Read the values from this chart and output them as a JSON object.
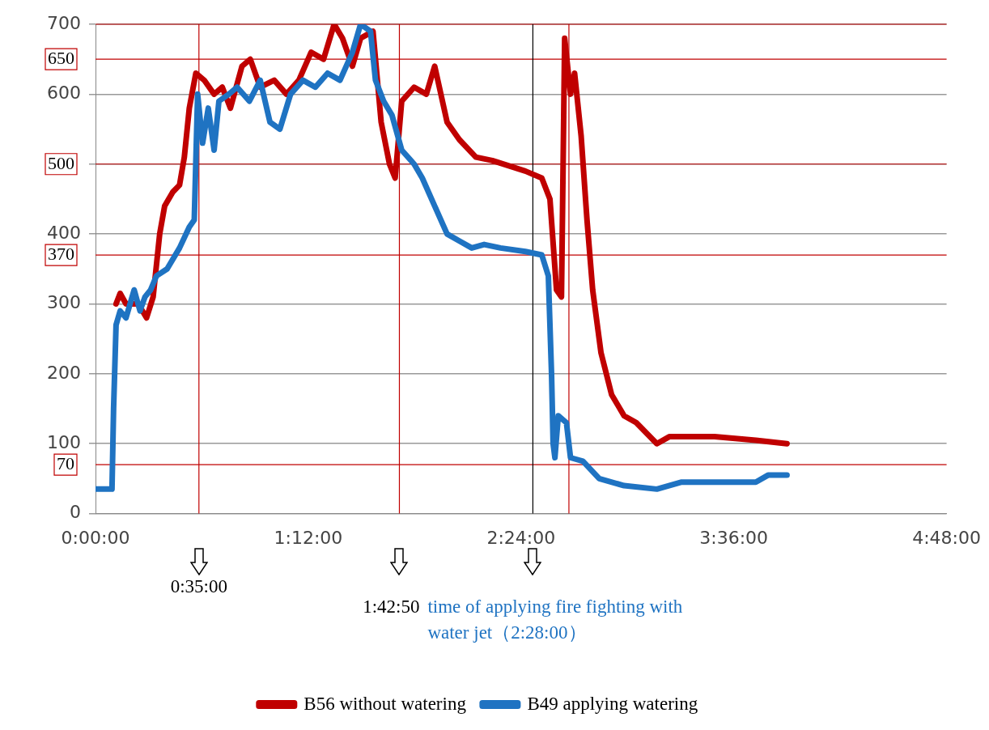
{
  "chart_data": {
    "type": "line",
    "legend": "bottom",
    "grid": "y",
    "marker": "none",
    "line_style": "solid",
    "xlim": [
      0,
      4.8
    ],
    "xticks": [
      {
        "value": 0,
        "label": "0:00:00"
      },
      {
        "value": 1.2,
        "label": "1:12:00"
      },
      {
        "value": 2.4,
        "label": "2:24:00"
      },
      {
        "value": 3.6,
        "label": "3:36:00"
      },
      {
        "value": 4.8,
        "label": "4:48:00"
      }
    ],
    "ylim": [
      0,
      700
    ],
    "yticks": [
      0,
      100,
      200,
      300,
      400,
      {
        "value": 500,
        "label": null
      },
      600,
      700
    ],
    "series": [
      {
        "name": "B56 without watering",
        "color": "#c00000",
        "x": [
          0.116,
          0.139,
          0.172,
          0.241,
          0.288,
          0.325,
          0.362,
          0.39,
          0.436,
          0.474,
          0.501,
          0.529,
          0.566,
          0.613,
          0.669,
          0.715,
          0.761,
          0.826,
          0.873,
          0.929,
          1.008,
          1.077,
          1.147,
          1.216,
          1.286,
          1.346,
          1.393,
          1.449,
          1.495,
          1.565,
          1.611,
          1.658,
          1.69,
          1.727,
          1.797,
          1.866,
          1.913,
          1.983,
          2.052,
          2.145,
          2.238,
          2.424,
          2.517,
          2.563,
          2.6,
          2.628,
          2.646,
          2.679,
          2.702,
          2.739,
          2.772,
          2.804,
          2.851,
          2.911,
          2.981,
          3.05,
          3.166,
          3.236,
          3.491,
          3.724,
          3.9
        ],
        "values": [
          300,
          315,
          300,
          300,
          280,
          310,
          400,
          440,
          460,
          470,
          510,
          580,
          630,
          620,
          600,
          610,
          580,
          640,
          650,
          610,
          620,
          600,
          620,
          660,
          650,
          700,
          680,
          640,
          680,
          690,
          560,
          500,
          480,
          590,
          610,
          600,
          640,
          560,
          535,
          510,
          505,
          490,
          480,
          450,
          320,
          310,
          680,
          600,
          630,
          540,
          420,
          320,
          230,
          170,
          140,
          130,
          100,
          110,
          110,
          105,
          100
        ]
      },
      {
        "name": "B49 applying watering",
        "color": "#1f73c2",
        "x": [
          0,
          0.093,
          0.102,
          0.116,
          0.139,
          0.172,
          0.195,
          0.218,
          0.251,
          0.279,
          0.311,
          0.344,
          0.404,
          0.474,
          0.529,
          0.557,
          0.576,
          0.604,
          0.636,
          0.669,
          0.696,
          0.752,
          0.799,
          0.868,
          0.929,
          0.984,
          1.04,
          1.1,
          1.17,
          1.24,
          1.309,
          1.379,
          1.449,
          1.495,
          1.551,
          1.579,
          1.625,
          1.672,
          1.727,
          1.797,
          1.843,
          1.913,
          1.983,
          2.052,
          2.122,
          2.192,
          2.284,
          2.424,
          2.517,
          2.554,
          2.572,
          2.581,
          2.591,
          2.61,
          2.656,
          2.679,
          2.749,
          2.841,
          2.981,
          3.166,
          3.306,
          3.538,
          3.724,
          3.793,
          3.9
        ],
        "values": [
          35,
          35,
          150,
          270,
          290,
          280,
          300,
          320,
          290,
          310,
          320,
          340,
          350,
          380,
          410,
          420,
          600,
          530,
          580,
          520,
          590,
          600,
          610,
          590,
          620,
          560,
          550,
          600,
          620,
          610,
          630,
          620,
          660,
          700,
          690,
          620,
          590,
          570,
          520,
          500,
          480,
          440,
          400,
          390,
          380,
          385,
          380,
          375,
          370,
          340,
          200,
          100,
          80,
          140,
          130,
          80,
          75,
          50,
          40,
          35,
          45,
          45,
          45,
          55,
          55
        ]
      }
    ],
    "ref_lines": [
      {
        "axis": "y",
        "value": 700,
        "label": null,
        "color": "#c00000"
      },
      {
        "axis": "y",
        "value": 650,
        "label": "650",
        "color": "#c00000"
      },
      {
        "axis": "y",
        "value": 500,
        "label": "500",
        "color": "#c00000"
      },
      {
        "axis": "y",
        "value": 370,
        "label": "370",
        "color": "#c00000"
      },
      {
        "axis": "y",
        "value": 70,
        "label": "70",
        "color": "#c00000"
      },
      {
        "axis": "x",
        "value": 0.5833,
        "label": null,
        "color": "#c00000"
      },
      {
        "axis": "x",
        "value": 1.7139,
        "label": null,
        "color": "#c00000"
      },
      {
        "axis": "x",
        "value": 2.4667,
        "label": null,
        "color": "#000000"
      },
      {
        "axis": "x",
        "value": 2.67,
        "label": null,
        "color": "#c00000"
      }
    ],
    "annotations": [
      "0:35:00",
      "1:42:50",
      "time of applying fire fighting with water jet（2:28:00）"
    ]
  }
}
